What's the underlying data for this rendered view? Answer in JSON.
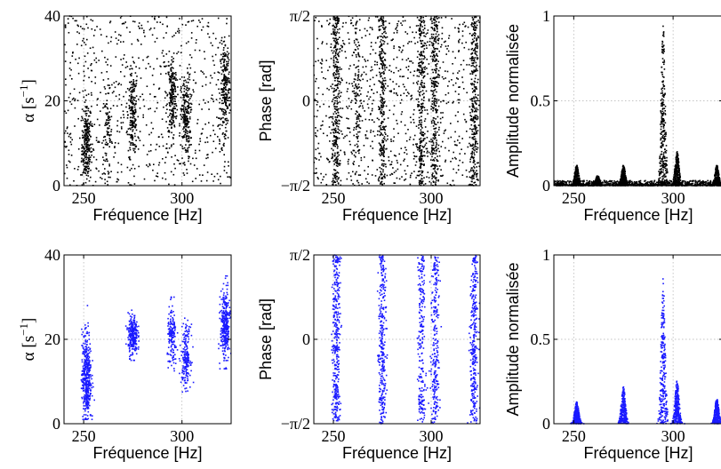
{
  "colors": {
    "raw_points": "#000000",
    "filtered_points": "#1a1aff",
    "grid": "#b0b0b0",
    "axes": "#000000"
  },
  "chart_data": [
    {
      "id": "top-alpha",
      "type": "scatter",
      "xlabel": "Fréquence [Hz]",
      "ylabel_prefix": "α [s",
      "ylabel_sup": "−1",
      "ylabel_suffix": "]",
      "xlim": [
        240,
        325
      ],
      "ylim": [
        0,
        40
      ],
      "xticks": [
        250,
        300
      ],
      "xtick_labels": [
        "250",
        "300"
      ],
      "yticks": [
        0,
        20,
        40
      ],
      "ytick_labels": [
        "0",
        "20",
        "40"
      ],
      "grid": true,
      "color": "#000000",
      "clusters": [
        {
          "x": 251.5,
          "y": 10,
          "count": 260
        },
        {
          "x": 262,
          "y": 12,
          "count": 80
        },
        {
          "x": 275,
          "y": 17,
          "count": 200
        },
        {
          "x": 295,
          "y": 21,
          "count": 210
        },
        {
          "x": 302,
          "y": 16,
          "count": 210
        },
        {
          "x": 322,
          "y": 23,
          "count": 220
        }
      ],
      "background_points": 700
    },
    {
      "id": "top-phase",
      "type": "scatter",
      "xlabel": "Fréquence [Hz]",
      "ylabel": "Phase [rad]",
      "xlim": [
        240,
        325
      ],
      "ylim": [
        -1.5708,
        1.5708
      ],
      "xticks": [
        250,
        300
      ],
      "xtick_labels": [
        "250",
        "300"
      ],
      "yticks": [
        -1.5708,
        0,
        1.5708
      ],
      "ytick_labels": [
        "−π/2",
        "0",
        "π/2"
      ],
      "grid": true,
      "color": "#000000",
      "bands": [
        {
          "x": 251.5,
          "count": 300
        },
        {
          "x": 262,
          "count": 120
        },
        {
          "x": 275,
          "count": 250
        },
        {
          "x": 295,
          "count": 280
        },
        {
          "x": 302,
          "count": 280
        },
        {
          "x": 322,
          "count": 280
        }
      ],
      "background_points": 900
    },
    {
      "id": "top-amp",
      "type": "scatter",
      "xlabel": "Fréquence [Hz]",
      "ylabel": "Amplitude normalisée",
      "xlim": [
        240,
        325
      ],
      "ylim": [
        0,
        1
      ],
      "xticks": [
        250,
        300
      ],
      "xtick_labels": [
        "250",
        "300"
      ],
      "yticks": [
        0,
        0.5,
        1
      ],
      "ytick_labels": [
        "0",
        "0.5",
        "1"
      ],
      "grid": true,
      "color": "#000000",
      "peaks": [
        {
          "x": 251.5,
          "height": 0.12
        },
        {
          "x": 262,
          "height": 0.06
        },
        {
          "x": 275,
          "height": 0.12
        },
        {
          "x": 295,
          "height": 0.95
        },
        {
          "x": 302,
          "height": 0.2
        },
        {
          "x": 322,
          "height": 0.12
        }
      ],
      "noise_level": 0.03
    },
    {
      "id": "bottom-alpha",
      "type": "scatter",
      "xlabel": "Fréquence [Hz]",
      "ylabel_prefix": "α [s",
      "ylabel_sup": "−1",
      "ylabel_suffix": "]",
      "xlim": [
        240,
        325
      ],
      "ylim": [
        0,
        40
      ],
      "xticks": [
        250,
        300
      ],
      "xtick_labels": [
        "250",
        "300"
      ],
      "yticks": [
        0,
        20,
        40
      ],
      "ytick_labels": [
        "0",
        "20",
        "40"
      ],
      "grid": true,
      "color": "#1a1aff",
      "clusters": [
        {
          "x": 251.5,
          "y": 11,
          "ymin": 1,
          "ymax": 28,
          "count": 420
        },
        {
          "x": 275,
          "y": 21,
          "ymin": 15,
          "ymax": 27,
          "count": 260
        },
        {
          "x": 295,
          "y": 20,
          "ymin": 11,
          "ymax": 30,
          "count": 150
        },
        {
          "x": 302,
          "y": 16,
          "ymin": 7,
          "ymax": 25,
          "count": 190
        },
        {
          "x": 322,
          "y": 23,
          "ymin": 13,
          "ymax": 35,
          "count": 320
        }
      ]
    },
    {
      "id": "bottom-phase",
      "type": "scatter",
      "xlabel": "Fréquence [Hz]",
      "ylabel": "Phase [rad]",
      "xlim": [
        240,
        325
      ],
      "ylim": [
        -1.5708,
        1.5708
      ],
      "xticks": [
        250,
        300
      ],
      "xtick_labels": [
        "250",
        "300"
      ],
      "yticks": [
        -1.5708,
        0,
        1.5708
      ],
      "ytick_labels": [
        "−π/2",
        "0",
        "π/2"
      ],
      "grid": true,
      "color": "#1a1aff",
      "bands": [
        {
          "x": 251.5,
          "count": 360
        },
        {
          "x": 275,
          "count": 300
        },
        {
          "x": 295,
          "count": 220
        },
        {
          "x": 302,
          "count": 260
        },
        {
          "x": 322,
          "count": 320
        }
      ]
    },
    {
      "id": "bottom-amp",
      "type": "scatter",
      "xlabel": "Fréquence [Hz]",
      "ylabel": "Amplitude normalisée",
      "xlim": [
        240,
        325
      ],
      "ylim": [
        0,
        1
      ],
      "xticks": [
        250,
        300
      ],
      "xtick_labels": [
        "250",
        "300"
      ],
      "yticks": [
        0,
        0.5,
        1
      ],
      "ytick_labels": [
        "0",
        "0.5",
        "1"
      ],
      "grid": true,
      "color": "#1a1aff",
      "peaks": [
        {
          "x": 251.5,
          "height": 0.13
        },
        {
          "x": 275,
          "height": 0.22
        },
        {
          "x": 295,
          "height": 0.86
        },
        {
          "x": 302,
          "height": 0.26
        },
        {
          "x": 322,
          "height": 0.15
        }
      ]
    }
  ]
}
